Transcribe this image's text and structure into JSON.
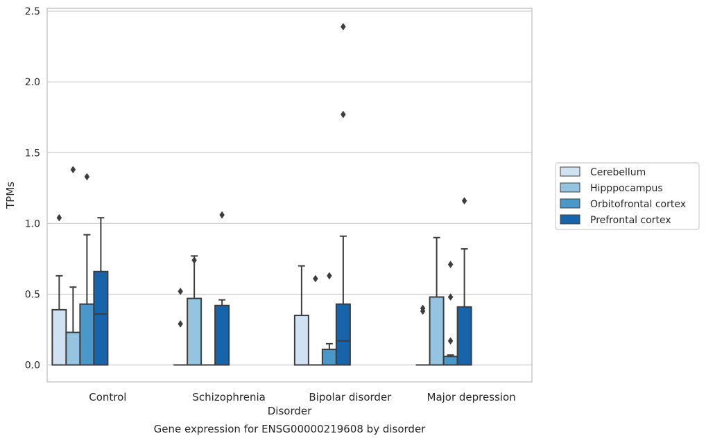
{
  "chart_data": {
    "type": "box",
    "caption": "Gene expression for ENSG00000219608 by disorder",
    "xlabel": "Disorder",
    "ylabel": "TPMs",
    "ylim": [
      -0.12,
      2.52
    ],
    "yticks": [
      0.0,
      0.5,
      1.0,
      1.5,
      2.0,
      2.5
    ],
    "ytick_labels": [
      "0.0",
      "0.5",
      "1.0",
      "1.5",
      "2.0",
      "2.5"
    ],
    "grid": true,
    "legend_position": "right",
    "categories": [
      "Control",
      "Schizophrenia",
      "Bipolar disorder",
      "Major depression"
    ],
    "series": [
      {
        "name": "Cerebellum",
        "color": "#d0e1f2",
        "boxes": [
          {
            "q1": 0.0,
            "median": 0.0,
            "q3": 0.39,
            "whisker_low": 0.0,
            "whisker_high": 0.63,
            "outliers": [
              1.04
            ]
          },
          {
            "q1": 0.0,
            "median": 0.0,
            "q3": 0.0,
            "whisker_low": 0.0,
            "whisker_high": 0.0,
            "outliers": [
              0.52,
              0.29
            ]
          },
          {
            "q1": 0.0,
            "median": 0.0,
            "q3": 0.35,
            "whisker_low": 0.0,
            "whisker_high": 0.7,
            "outliers": []
          },
          {
            "q1": 0.0,
            "median": 0.0,
            "q3": 0.0,
            "whisker_low": 0.0,
            "whisker_high": 0.0,
            "outliers": [
              0.4,
              0.38
            ]
          }
        ]
      },
      {
        "name": "Hipppocampus",
        "color": "#94c4df",
        "boxes": [
          {
            "q1": 0.0,
            "median": 0.0,
            "q3": 0.23,
            "whisker_low": 0.0,
            "whisker_high": 0.55,
            "outliers": [
              1.38
            ]
          },
          {
            "q1": 0.0,
            "median": 0.0,
            "q3": 0.47,
            "whisker_low": 0.0,
            "whisker_high": 0.77,
            "outliers": [
              0.74
            ]
          },
          {
            "q1": 0.0,
            "median": 0.0,
            "q3": 0.0,
            "whisker_low": 0.0,
            "whisker_high": 0.0,
            "outliers": [
              0.61
            ]
          },
          {
            "q1": 0.0,
            "median": 0.0,
            "q3": 0.48,
            "whisker_low": 0.0,
            "whisker_high": 0.9,
            "outliers": []
          }
        ]
      },
      {
        "name": "Orbitofrontal cortex",
        "color": "#4a98c9",
        "boxes": [
          {
            "q1": 0.0,
            "median": 0.0,
            "q3": 0.43,
            "whisker_low": 0.0,
            "whisker_high": 0.92,
            "outliers": [
              1.33
            ]
          },
          {
            "q1": 0.0,
            "median": 0.0,
            "q3": 0.0,
            "whisker_low": 0.0,
            "whisker_high": 0.0,
            "outliers": []
          },
          {
            "q1": 0.0,
            "median": 0.0,
            "q3": 0.11,
            "whisker_low": 0.0,
            "whisker_high": 0.15,
            "outliers": [
              0.63
            ]
          },
          {
            "q1": 0.0,
            "median": 0.0,
            "q3": 0.06,
            "whisker_low": 0.0,
            "whisker_high": 0.07,
            "outliers": [
              0.71,
              0.48,
              0.17
            ]
          }
        ]
      },
      {
        "name": "Prefrontal cortex",
        "color": "#1764ab",
        "boxes": [
          {
            "q1": 0.0,
            "median": 0.36,
            "q3": 0.66,
            "whisker_low": 0.0,
            "whisker_high": 1.04,
            "outliers": []
          },
          {
            "q1": 0.0,
            "median": 0.0,
            "q3": 0.42,
            "whisker_low": 0.0,
            "whisker_high": 0.46,
            "outliers": [
              1.06
            ]
          },
          {
            "q1": 0.0,
            "median": 0.17,
            "q3": 0.43,
            "whisker_low": 0.0,
            "whisker_high": 0.91,
            "outliers": [
              2.39,
              1.77
            ]
          },
          {
            "q1": 0.0,
            "median": 0.0,
            "q3": 0.41,
            "whisker_low": 0.0,
            "whisker_high": 0.82,
            "outliers": [
              1.16
            ]
          }
        ]
      }
    ]
  }
}
